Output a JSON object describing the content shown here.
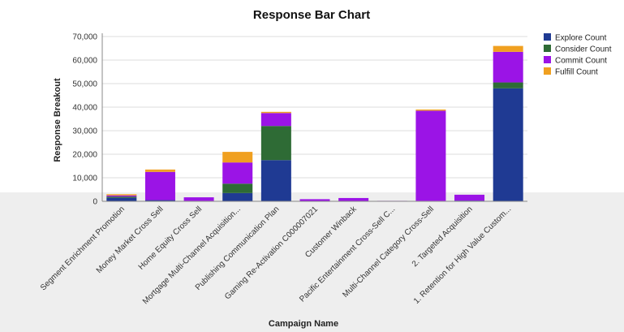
{
  "chart_data": {
    "type": "bar",
    "stacked": true,
    "title": "Response Bar Chart",
    "xlabel": "Campaign Name",
    "ylabel": "Response Breakout",
    "ylim": [
      0,
      70000
    ],
    "yticks": [
      "0",
      "10,000",
      "20,000",
      "30,000",
      "40,000",
      "50,000",
      "60,000",
      "70,000"
    ],
    "grid": true,
    "legend_position": "top-right",
    "categories": [
      "Segment Enrichment Promotion",
      "Money Market Cross Sell",
      "Home Equity Cross Sell",
      "Mortgage Multi-Channel Acquisition...",
      "Publishing Communication Plan",
      "Gaming Re-Activation C000007021",
      "Customer Winback",
      "Pacific Entertainment Cross-Sell C...",
      "Multi-Channel Category Cross-Sell",
      "2. Targeted Acquisition",
      "1. Retention for High Value Custom..."
    ],
    "series": [
      {
        "name": "Explore Count",
        "color": "#1f3a93",
        "values": [
          1500,
          500,
          200,
          3500,
          17500,
          100,
          100,
          0,
          200,
          300,
          48000
        ]
      },
      {
        "name": "Consider Count",
        "color": "#2e6b35",
        "values": [
          500,
          0,
          0,
          4000,
          14500,
          0,
          0,
          0,
          0,
          0,
          2500
        ]
      },
      {
        "name": "Commit Count",
        "color": "#9b14e6",
        "values": [
          500,
          12000,
          1500,
          9000,
          5500,
          800,
          1300,
          200,
          38300,
          2500,
          13000
        ]
      },
      {
        "name": "Fulfill Count",
        "color": "#f0a020",
        "values": [
          500,
          1000,
          0,
          4500,
          500,
          0,
          0,
          0,
          500,
          0,
          2500
        ]
      }
    ]
  }
}
